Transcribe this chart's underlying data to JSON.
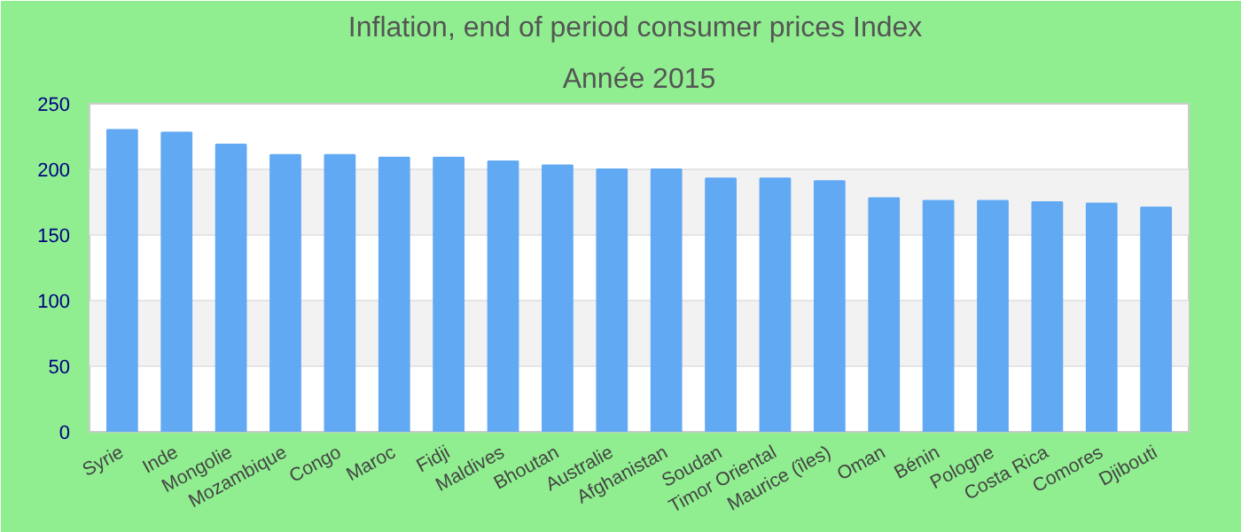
{
  "chart_data": {
    "type": "bar",
    "title": "Inflation, end of period consumer prices  Index",
    "subtitle": "Année 2015",
    "categories": [
      "Syrie",
      "Inde",
      "Mongolie",
      "Mozambique",
      "Congo",
      "Maroc",
      "Fidji",
      "Maldives",
      "Bhoutan",
      "Australie",
      "Afghanistan",
      "Soudan",
      "Timor Oriental",
      "Maurice (îles)",
      "Oman",
      "Bénin",
      "Pologne",
      "Costa Rica",
      "Comores",
      "Djibouti"
    ],
    "values": [
      230,
      228,
      219,
      211,
      211,
      209,
      209,
      206,
      203,
      200,
      200,
      193,
      193,
      191,
      178,
      176,
      176,
      175,
      174,
      171
    ],
    "color": "#62a9f4",
    "ylim": [
      0,
      250
    ],
    "yticks": [
      0,
      50,
      100,
      150,
      200,
      250
    ],
    "grid": "y"
  }
}
